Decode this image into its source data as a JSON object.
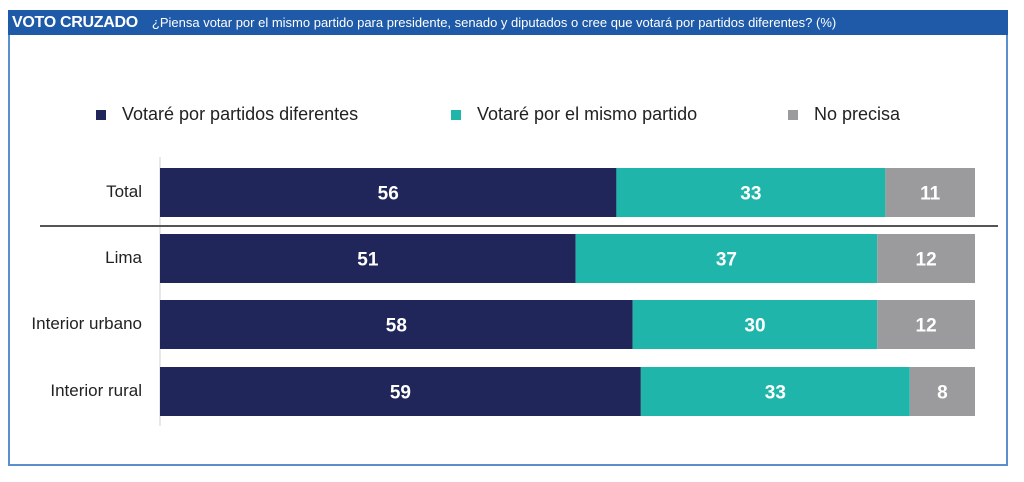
{
  "header": {
    "title": "VOTO CRUZADO",
    "question": "¿Piensa votar por el mismo partido para presidente, senado y diputados o cree que votará por partidos diferentes? (%)"
  },
  "chart_data": {
    "type": "bar",
    "orientation": "horizontal",
    "stacked": true,
    "categories": [
      "Total",
      "Lima",
      "Interior urbano",
      "Interior rural"
    ],
    "series": [
      {
        "name": "Votaré por partidos diferentes",
        "color": "#20265a",
        "values": [
          56,
          51,
          58,
          59
        ]
      },
      {
        "name": "Votaré por el mismo partido",
        "color": "#1fb5aa",
        "values": [
          33,
          37,
          30,
          33
        ]
      },
      {
        "name": "No precisa",
        "color": "#9b9b9d",
        "values": [
          11,
          12,
          12,
          8
        ]
      }
    ],
    "xlim": [
      0,
      100
    ],
    "legend": "top",
    "grid": false
  }
}
